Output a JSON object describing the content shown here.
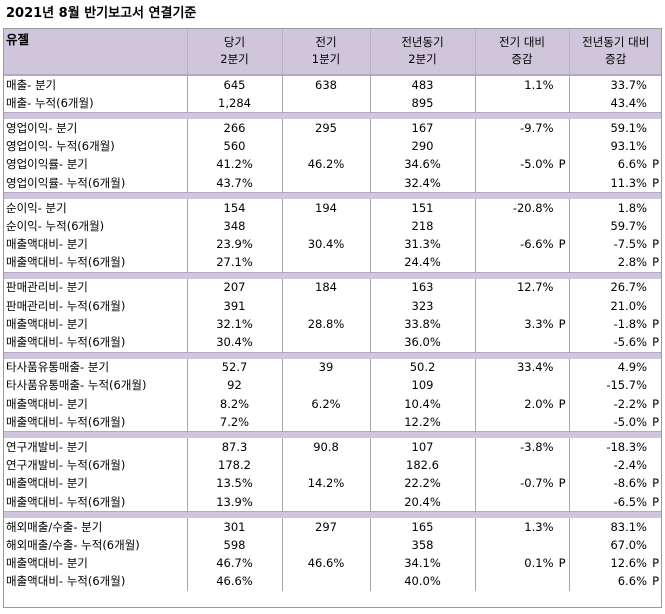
{
  "title": "2021년 8월 반기보고서 연결기준",
  "header": {
    "company": "유젤",
    "cols": [
      "당기\n2분기",
      "전기\n1분기",
      "전년동기\n2분기",
      "전기 대비\n증감",
      "전년동기 대비\n증감"
    ]
  },
  "groups": [
    {
      "rows": [
        {
          "label": "매출- 분기",
          "v": [
            "645",
            "638",
            "483",
            "1.1%",
            ""
          ],
          "yoy": "33.7%",
          "qp": "",
          "yp": ""
        },
        {
          "label": "매출- 누적(6개월)",
          "v": [
            "1,284",
            "",
            "895",
            "",
            ""
          ],
          "yoy": "43.4%",
          "qp": "",
          "yp": ""
        }
      ]
    },
    {
      "rows": [
        {
          "label": "영업이익- 분기",
          "v": [
            "266",
            "295",
            "167",
            "-9.7%",
            ""
          ],
          "yoy": "59.1%",
          "qp": "",
          "yp": ""
        },
        {
          "label": "영업이익- 누적(6개월)",
          "v": [
            "560",
            "",
            "290",
            "",
            ""
          ],
          "yoy": "93.1%",
          "qp": "",
          "yp": ""
        },
        {
          "label": "영업이익률- 분기",
          "v": [
            "41.2%",
            "46.2%",
            "34.6%",
            "-5.0%",
            ""
          ],
          "yoy": "6.6%",
          "qp": "P",
          "yp": "P"
        },
        {
          "label": "영업이익률- 누적(6개월)",
          "v": [
            "43.7%",
            "",
            "32.4%",
            "",
            ""
          ],
          "yoy": "11.3%",
          "qp": "",
          "yp": "P"
        }
      ]
    },
    {
      "rows": [
        {
          "label": "순이익- 분기",
          "v": [
            "154",
            "194",
            "151",
            "-20.8%",
            ""
          ],
          "yoy": "1.8%",
          "qp": "",
          "yp": ""
        },
        {
          "label": "순이익- 누적(6개월)",
          "v": [
            "348",
            "",
            "218",
            "",
            ""
          ],
          "yoy": "59.7%",
          "qp": "",
          "yp": ""
        },
        {
          "label": "매출액대비- 분기",
          "v": [
            "23.9%",
            "30.4%",
            "31.3%",
            "-6.6%",
            ""
          ],
          "yoy": "-7.5%",
          "qp": "P",
          "yp": "P"
        },
        {
          "label": "매출액대비- 누적(6개월)",
          "v": [
            "27.1%",
            "",
            "24.4%",
            "",
            ""
          ],
          "yoy": "2.8%",
          "qp": "",
          "yp": "P"
        }
      ]
    },
    {
      "rows": [
        {
          "label": "판매관리비- 분기",
          "v": [
            "207",
            "184",
            "163",
            "12.7%",
            ""
          ],
          "yoy": "26.7%",
          "qp": "",
          "yp": ""
        },
        {
          "label": "판매관리비- 누적(6개월)",
          "v": [
            "391",
            "",
            "323",
            "",
            ""
          ],
          "yoy": "21.0%",
          "qp": "",
          "yp": ""
        },
        {
          "label": "매출액대비- 분기",
          "v": [
            "32.1%",
            "28.8%",
            "33.8%",
            "3.3%",
            ""
          ],
          "yoy": "-1.8%",
          "qp": "P",
          "yp": "P"
        },
        {
          "label": "매출액대비- 누적(6개월)",
          "v": [
            "30.4%",
            "",
            "36.0%",
            "",
            ""
          ],
          "yoy": "-5.6%",
          "qp": "",
          "yp": "P"
        }
      ]
    },
    {
      "rows": [
        {
          "label": "타사품유통매출- 분기",
          "v": [
            "52.7",
            "39",
            "50.2",
            "33.4%",
            ""
          ],
          "yoy": "4.9%",
          "qp": "",
          "yp": ""
        },
        {
          "label": "타사품유통매출- 누적(6개월)",
          "v": [
            "92",
            "",
            "109",
            "",
            ""
          ],
          "yoy": "-15.7%",
          "qp": "",
          "yp": ""
        },
        {
          "label": "매출액대비- 분기",
          "v": [
            "8.2%",
            "6.2%",
            "10.4%",
            "2.0%",
            ""
          ],
          "yoy": "-2.2%",
          "qp": "P",
          "yp": "P"
        },
        {
          "label": "매출액대비- 누적(6개월)",
          "v": [
            "7.2%",
            "",
            "12.2%",
            "",
            ""
          ],
          "yoy": "-5.0%",
          "qp": "",
          "yp": "P"
        }
      ]
    },
    {
      "rows": [
        {
          "label": "연구개발비- 분기",
          "v": [
            "87.3",
            "90.8",
            "107",
            "-3.8%",
            ""
          ],
          "yoy": "-18.3%",
          "qp": "",
          "yp": ""
        },
        {
          "label": "연구개발비- 누적(6개월)",
          "v": [
            "178.2",
            "",
            "182.6",
            "",
            ""
          ],
          "yoy": "-2.4%",
          "qp": "",
          "yp": ""
        },
        {
          "label": "매출액대비- 분기",
          "v": [
            "13.5%",
            "14.2%",
            "22.2%",
            "-0.7%",
            ""
          ],
          "yoy": "-8.6%",
          "qp": "P",
          "yp": "P"
        },
        {
          "label": "매출액대비- 누적(6개월)",
          "v": [
            "13.9%",
            "",
            "20.4%",
            "",
            ""
          ],
          "yoy": "-6.5%",
          "qp": "",
          "yp": "P"
        }
      ]
    },
    {
      "rows": [
        {
          "label": "해외매출/수출- 분기",
          "v": [
            "301",
            "297",
            "165",
            "1.3%",
            ""
          ],
          "yoy": "83.1%",
          "qp": "",
          "yp": ""
        },
        {
          "label": "해외매출/수출- 누적(6개월)",
          "v": [
            "598",
            "",
            "358",
            "",
            ""
          ],
          "yoy": "67.0%",
          "qp": "",
          "yp": ""
        },
        {
          "label": "매출액대비- 분기",
          "v": [
            "46.7%",
            "46.6%",
            "34.1%",
            "0.1%",
            ""
          ],
          "yoy": "12.6%",
          "qp": "P",
          "yp": "P"
        },
        {
          "label": "매출액대비- 누적(6개월)",
          "v": [
            "46.6%",
            "",
            "40.0%",
            "",
            ""
          ],
          "yoy": "6.6%",
          "qp": "",
          "yp": "P"
        }
      ]
    }
  ]
}
